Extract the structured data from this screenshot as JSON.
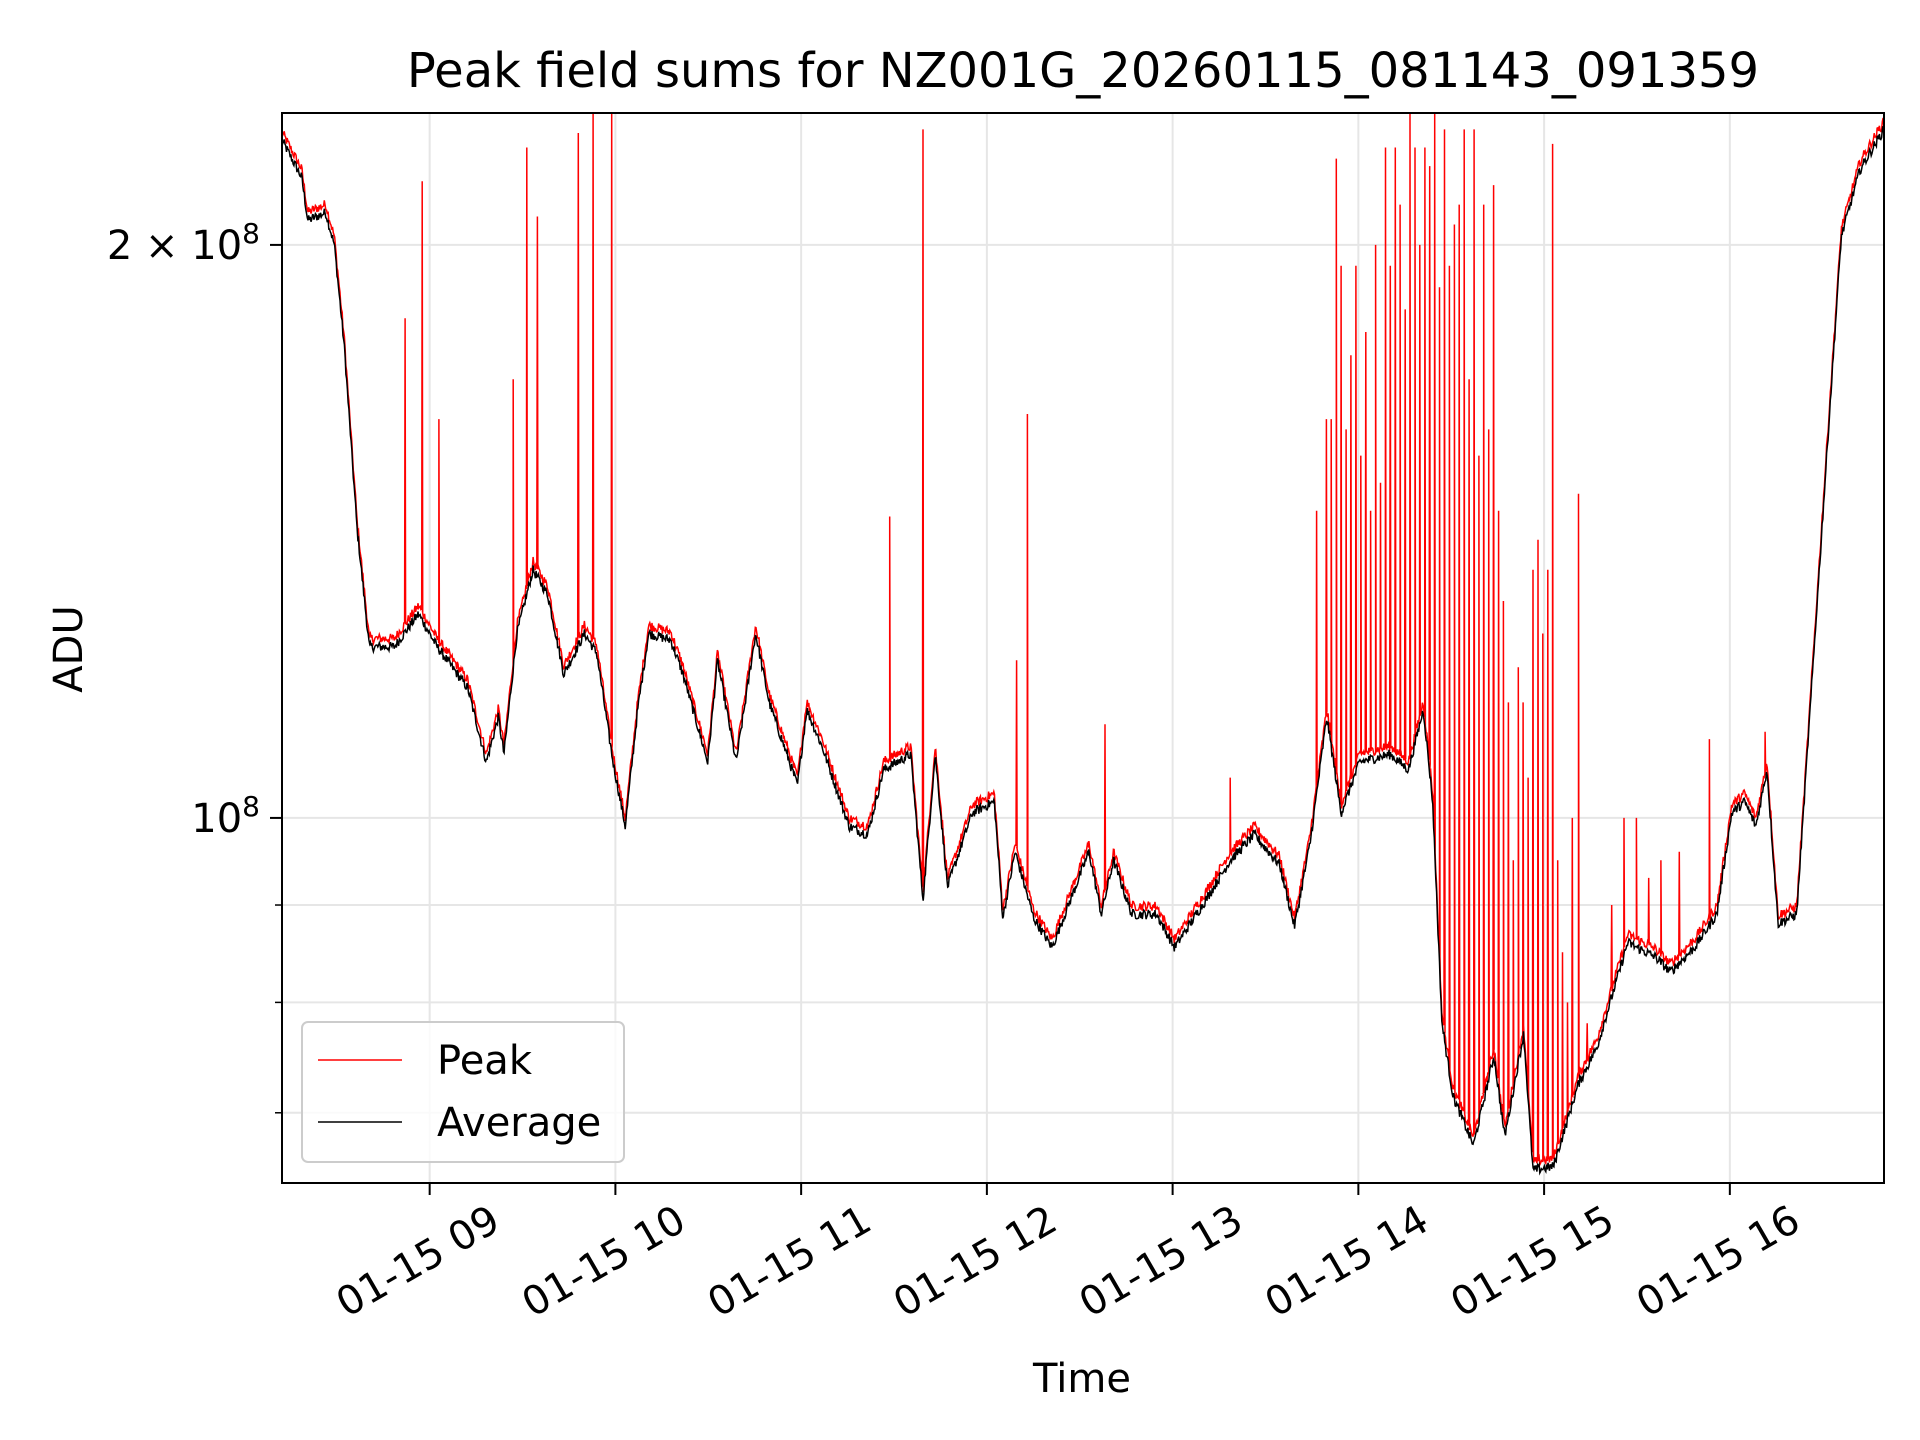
{
  "chart_data": {
    "type": "line",
    "title": "Peak field sums for NZ001G_20260115_081143_091359",
    "xlabel": "Time",
    "ylabel": "ADU",
    "yscale": "log",
    "xlim_hours": [
      8.205,
      16.83
    ],
    "ylim": [
      64300000,
      234600000
    ],
    "grid": true,
    "legend_position": "lower-left",
    "x_ticks": [
      {
        "hour": 9,
        "label": "01-15 09"
      },
      {
        "hour": 10,
        "label": "01-15 10"
      },
      {
        "hour": 11,
        "label": "01-15 11"
      },
      {
        "hour": 12,
        "label": "01-15 12"
      },
      {
        "hour": 13,
        "label": "01-15 13"
      },
      {
        "hour": 14,
        "label": "01-15 14"
      },
      {
        "hour": 15,
        "label": "01-15 15"
      },
      {
        "hour": 16,
        "label": "01-15 16"
      }
    ],
    "y_major_ticks": [
      {
        "value": 200000000,
        "label_base": "2 × 10",
        "label_exp": "8"
      },
      {
        "value": 100000000,
        "label_base": "10",
        "label_exp": "8"
      }
    ],
    "y_minor_ticks": [
      70000000,
      80000000,
      90000000
    ],
    "series": [
      {
        "name": "Peak",
        "color": "#ff0000"
      },
      {
        "name": "Average",
        "color": "#000000"
      }
    ],
    "average_keypoints_hours_1e8": [
      [
        8.205,
        2.27
      ],
      [
        8.311,
        2.17
      ],
      [
        8.344,
        2.06
      ],
      [
        8.44,
        2.08
      ],
      [
        8.487,
        2.0
      ],
      [
        8.54,
        1.77
      ],
      [
        8.609,
        1.42
      ],
      [
        8.675,
        1.23
      ],
      [
        8.81,
        1.23
      ],
      [
        8.94,
        1.28
      ],
      [
        9.04,
        1.23
      ],
      [
        9.205,
        1.17
      ],
      [
        9.305,
        1.07
      ],
      [
        9.37,
        1.13
      ],
      [
        9.4,
        1.08
      ],
      [
        9.47,
        1.25
      ],
      [
        9.556,
        1.35
      ],
      [
        9.636,
        1.31
      ],
      [
        9.722,
        1.19
      ],
      [
        9.834,
        1.25
      ],
      [
        9.9,
        1.22
      ],
      [
        9.987,
        1.07
      ],
      [
        10.053,
        0.99
      ],
      [
        10.12,
        1.14
      ],
      [
        10.179,
        1.25
      ],
      [
        10.298,
        1.24
      ],
      [
        10.364,
        1.19
      ],
      [
        10.497,
        1.07
      ],
      [
        10.55,
        1.21
      ],
      [
        10.65,
        1.07
      ],
      [
        10.755,
        1.25
      ],
      [
        10.828,
        1.15
      ],
      [
        10.98,
        1.04
      ],
      [
        11.03,
        1.14
      ],
      [
        11.113,
        1.09
      ],
      [
        11.258,
        0.99
      ],
      [
        11.358,
        0.98
      ],
      [
        11.444,
        1.06
      ],
      [
        11.59,
        1.08
      ],
      [
        11.656,
        0.906
      ],
      [
        11.722,
        1.08
      ],
      [
        11.788,
        0.92
      ],
      [
        11.921,
        1.006
      ],
      [
        12.04,
        1.02
      ],
      [
        12.086,
        0.886
      ],
      [
        12.152,
        0.96
      ],
      [
        12.252,
        0.886
      ],
      [
        12.351,
        0.855
      ],
      [
        12.55,
        0.96
      ],
      [
        12.616,
        0.89
      ],
      [
        12.682,
        0.95
      ],
      [
        12.78,
        0.89
      ],
      [
        12.914,
        0.89
      ],
      [
        13.01,
        0.855
      ],
      [
        13.18,
        0.906
      ],
      [
        13.31,
        0.95
      ],
      [
        13.44,
        0.98
      ],
      [
        13.576,
        0.945
      ],
      [
        13.656,
        0.877
      ],
      [
        13.74,
        0.97
      ],
      [
        13.83,
        1.13
      ],
      [
        13.907,
        1.006
      ],
      [
        14.007,
        1.07
      ],
      [
        14.172,
        1.08
      ],
      [
        14.27,
        1.06
      ],
      [
        14.35,
        1.14
      ],
      [
        14.4,
        1.02
      ],
      [
        14.45,
        0.78
      ],
      [
        14.51,
        0.714
      ],
      [
        14.62,
        0.673
      ],
      [
        14.73,
        0.75
      ],
      [
        14.788,
        0.68
      ],
      [
        14.89,
        0.77
      ],
      [
        14.94,
        0.653
      ],
      [
        15.05,
        0.656
      ],
      [
        15.185,
        0.725
      ],
      [
        15.285,
        0.758
      ],
      [
        15.45,
        0.86
      ],
      [
        15.6,
        0.845
      ],
      [
        15.68,
        0.83
      ],
      [
        15.81,
        0.855
      ],
      [
        15.93,
        0.89
      ],
      [
        16.01,
        1.006
      ],
      [
        16.08,
        1.02
      ],
      [
        16.14,
        0.99
      ],
      [
        16.2,
        1.06
      ],
      [
        16.26,
        0.88
      ],
      [
        16.36,
        0.89
      ],
      [
        16.44,
        1.17
      ],
      [
        16.54,
        1.65
      ],
      [
        16.6,
        2.02
      ],
      [
        16.7,
        2.19
      ],
      [
        16.83,
        2.3
      ]
    ],
    "peak_spikes_hours_1e8": [
      [
        8.96,
        2.16
      ],
      [
        8.868,
        1.83
      ],
      [
        9.05,
        1.62
      ],
      [
        9.45,
        1.7
      ],
      [
        9.523,
        2.25
      ],
      [
        9.58,
        2.07
      ],
      [
        9.8,
        2.29
      ],
      [
        9.88,
        2.35
      ],
      [
        9.98,
        2.35
      ],
      [
        11.477,
        1.44
      ],
      [
        11.656,
        2.3
      ],
      [
        12.16,
        1.21
      ],
      [
        12.218,
        1.63
      ],
      [
        12.636,
        1.12
      ],
      [
        13.31,
        1.05
      ],
      [
        13.775,
        1.45
      ],
      [
        13.828,
        1.62
      ],
      [
        13.854,
        1.62
      ],
      [
        13.881,
        2.22
      ],
      [
        13.907,
        1.95
      ],
      [
        13.934,
        1.6
      ],
      [
        13.96,
        1.75
      ],
      [
        13.987,
        1.95
      ],
      [
        14.013,
        1.55
      ],
      [
        14.04,
        1.8
      ],
      [
        14.066,
        1.45
      ],
      [
        14.093,
        2.0
      ],
      [
        14.119,
        1.5
      ],
      [
        14.146,
        2.25
      ],
      [
        14.172,
        1.95
      ],
      [
        14.199,
        2.25
      ],
      [
        14.225,
        2.1
      ],
      [
        14.252,
        1.85
      ],
      [
        14.278,
        2.35
      ],
      [
        14.305,
        2.25
      ],
      [
        14.331,
        2.0
      ],
      [
        14.358,
        2.25
      ],
      [
        14.384,
        2.2
      ],
      [
        14.411,
        2.35
      ],
      [
        14.437,
        1.9
      ],
      [
        14.464,
        2.3
      ],
      [
        14.49,
        1.95
      ],
      [
        14.517,
        2.05
      ],
      [
        14.543,
        2.1
      ],
      [
        14.57,
        2.3
      ],
      [
        14.596,
        1.7
      ],
      [
        14.623,
        2.3
      ],
      [
        14.649,
        1.55
      ],
      [
        14.675,
        2.1
      ],
      [
        14.702,
        1.6
      ],
      [
        14.728,
        2.15
      ],
      [
        14.755,
        1.45
      ],
      [
        14.781,
        1.3
      ],
      [
        14.808,
        1.15
      ],
      [
        14.834,
        0.95
      ],
      [
        14.861,
        1.2
      ],
      [
        14.887,
        1.15
      ],
      [
        14.914,
        1.05
      ],
      [
        14.94,
        1.35
      ],
      [
        14.967,
        1.4
      ],
      [
        14.993,
        1.25
      ],
      [
        15.02,
        1.35
      ],
      [
        15.046,
        2.26
      ],
      [
        15.073,
        0.95
      ],
      [
        15.099,
        0.85
      ],
      [
        15.126,
        0.8
      ],
      [
        15.152,
        1.0
      ],
      [
        15.185,
        1.48
      ],
      [
        15.232,
        0.78
      ],
      [
        15.364,
        0.9
      ],
      [
        15.43,
        1.0
      ],
      [
        15.497,
        1.0
      ],
      [
        15.563,
        0.93
      ],
      [
        15.629,
        0.95
      ],
      [
        15.728,
        0.96
      ],
      [
        15.89,
        1.1
      ],
      [
        16.19,
        1.11
      ]
    ]
  }
}
